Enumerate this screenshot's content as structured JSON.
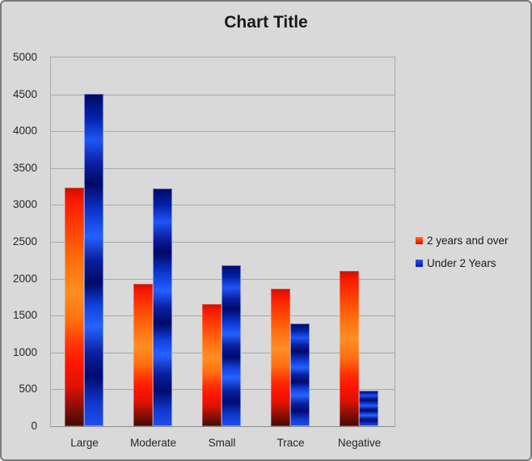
{
  "window": {
    "background_color": "#d9d9d9",
    "border_color": "#7a7a7a"
  },
  "title": "Chart Title",
  "legend": {
    "position": "right",
    "items": [
      {
        "label": "2 years and over",
        "color": "#e8341c"
      },
      {
        "label": "Under 2 Years",
        "color": "#1b35cf"
      }
    ]
  },
  "chart_data": {
    "type": "bar",
    "title": "Chart Title",
    "categories": [
      "Large",
      "Moderate",
      "Small",
      "Trace",
      "Negative"
    ],
    "series": [
      {
        "name": "2 years and over",
        "color": "#e8341c",
        "values": [
          3240,
          1930,
          1660,
          1860,
          2110
        ]
      },
      {
        "name": "Under 2 Years",
        "color": "#1b35cf",
        "values": [
          4510,
          3220,
          2180,
          1390,
          480
        ]
      }
    ],
    "xlabel": "",
    "ylabel": "",
    "ylim": [
      0,
      5000
    ],
    "ytick_step": 500,
    "ytick_labels": [
      "0",
      "500",
      "1000",
      "1500",
      "2000",
      "2500",
      "3000",
      "3500",
      "4000",
      "4500",
      "5000"
    ],
    "grid": true,
    "legend_position": "right",
    "grid_color": "#a8a8a8"
  }
}
